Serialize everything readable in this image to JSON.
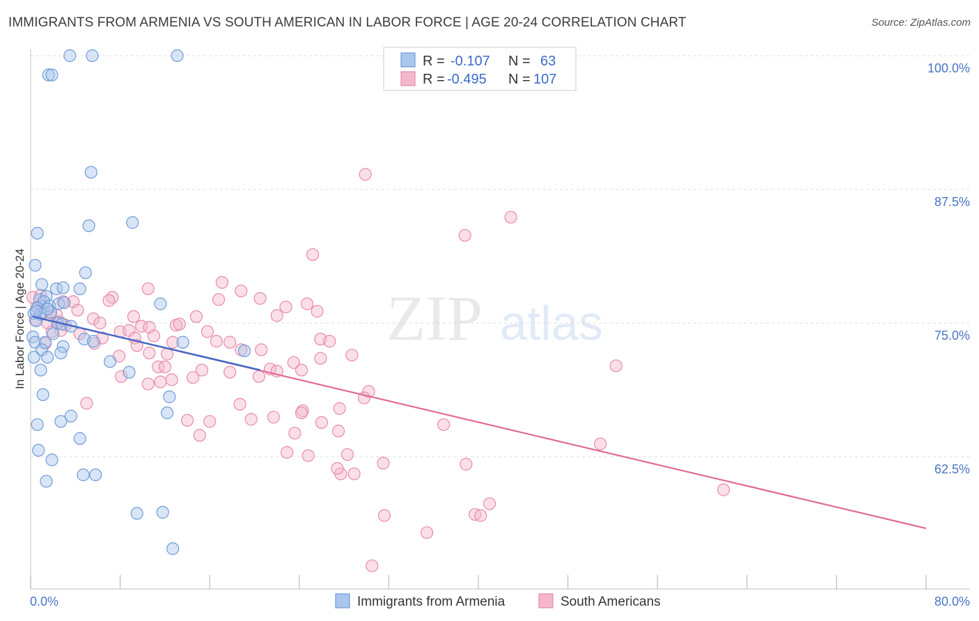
{
  "title": "IMMIGRANTS FROM ARMENIA VS SOUTH AMERICAN IN LABOR FORCE | AGE 20-24 CORRELATION CHART",
  "source": "Source: ZipAtlas.com",
  "watermark": {
    "zip": "ZIP",
    "atlas": "atlas"
  },
  "colors": {
    "blue_fill": "#a9c6ec",
    "blue_stroke": "#6e9bd8",
    "blue_line": "#3d68c8",
    "pink_fill": "#f5b8cb",
    "pink_stroke": "#e78aa8",
    "pink_line": "#e06a95",
    "grid": "#dddddd",
    "tick_text": "#4a74c4"
  },
  "legend": {
    "rows": [
      {
        "r_label": "R =",
        "r_value": "-0.107",
        "n_label": "N =",
        "n_value": "63"
      },
      {
        "r_label": "R =",
        "r_value": "-0.495",
        "n_label": "N =",
        "n_value": "107"
      }
    ]
  },
  "chart_data": {
    "type": "scatter",
    "xlabel": "",
    "ylabel": "In Labor Force | Age 20-24",
    "xlim": [
      0,
      80
    ],
    "ylim": [
      50,
      102
    ],
    "x_tick_labels": [
      "0.0%",
      "80.0%"
    ],
    "y_ticks": [
      100,
      87.5,
      75,
      62.5
    ],
    "y_tick_labels": [
      "100.0%",
      "87.5%",
      "75.0%",
      "62.5%"
    ],
    "grid": true,
    "legend_position": "top-center",
    "series": [
      {
        "name": "Immigrants from Armenia",
        "color": "#a9c6ec",
        "trend": {
          "x": [
            0.2,
            20.5
          ],
          "y": [
            75.6,
            70.6
          ]
        },
        "points": [
          [
            3.5,
            100
          ],
          [
            5.5,
            100
          ],
          [
            13.1,
            100
          ],
          [
            1.6,
            98.2
          ],
          [
            1.9,
            98.2
          ],
          [
            5.4,
            89.1
          ],
          [
            0.6,
            83.4
          ],
          [
            5.2,
            84.1
          ],
          [
            9.1,
            84.4
          ],
          [
            0.4,
            80.4
          ],
          [
            4.9,
            79.7
          ],
          [
            1.0,
            78.6
          ],
          [
            2.3,
            78.2
          ],
          [
            2.9,
            78.3
          ],
          [
            4.4,
            78.2
          ],
          [
            0.8,
            77.2
          ],
          [
            1.4,
            77.5
          ],
          [
            1.2,
            77.0
          ],
          [
            1.7,
            76.6
          ],
          [
            0.6,
            76.4
          ],
          [
            2.5,
            76.8
          ],
          [
            3.0,
            76.9
          ],
          [
            11.6,
            76.8
          ],
          [
            0.9,
            75.8
          ],
          [
            1.8,
            76.0
          ],
          [
            0.3,
            75.9
          ],
          [
            0.5,
            75.2
          ],
          [
            2.4,
            75.0
          ],
          [
            2.8,
            74.9
          ],
          [
            3.6,
            74.7
          ],
          [
            2.0,
            74.0
          ],
          [
            4.8,
            73.5
          ],
          [
            5.6,
            73.3
          ],
          [
            0.2,
            73.7
          ],
          [
            0.4,
            73.2
          ],
          [
            1.3,
            73.2
          ],
          [
            1.0,
            72.5
          ],
          [
            2.9,
            72.8
          ],
          [
            2.7,
            72.2
          ],
          [
            0.3,
            71.8
          ],
          [
            1.5,
            71.8
          ],
          [
            7.1,
            71.4
          ],
          [
            0.9,
            70.6
          ],
          [
            8.8,
            70.4
          ],
          [
            13.6,
            73.2
          ],
          [
            19.1,
            72.4
          ],
          [
            1.1,
            68.3
          ],
          [
            12.4,
            68.1
          ],
          [
            0.6,
            65.5
          ],
          [
            2.7,
            65.8
          ],
          [
            3.6,
            66.3
          ],
          [
            12.2,
            66.6
          ],
          [
            4.4,
            64.2
          ],
          [
            0.7,
            63.1
          ],
          [
            1.9,
            62.2
          ],
          [
            1.4,
            60.2
          ],
          [
            4.7,
            60.8
          ],
          [
            5.8,
            60.8
          ],
          [
            9.5,
            57.2
          ],
          [
            11.8,
            57.3
          ],
          [
            12.7,
            53.9
          ],
          [
            0.5,
            76.1
          ],
          [
            1.5,
            76.3
          ]
        ]
      },
      {
        "name": "South Americans",
        "color": "#f5b8cb",
        "trend": {
          "x": [
            0.2,
            80
          ],
          "y": [
            75.6,
            55.8
          ]
        },
        "points": [
          [
            29.9,
            88.9
          ],
          [
            42.9,
            84.9
          ],
          [
            38.8,
            83.2
          ],
          [
            25.2,
            81.4
          ],
          [
            17.1,
            78.8
          ],
          [
            18.8,
            78.0
          ],
          [
            10.5,
            78.2
          ],
          [
            0.2,
            77.4
          ],
          [
            0.9,
            77.6
          ],
          [
            7.3,
            77.4
          ],
          [
            7.0,
            77.1
          ],
          [
            16.8,
            77.2
          ],
          [
            20.5,
            77.3
          ],
          [
            2.9,
            77.0
          ],
          [
            3.8,
            77.0
          ],
          [
            22.8,
            76.5
          ],
          [
            24.7,
            76.8
          ],
          [
            25.6,
            76.1
          ],
          [
            0.6,
            76.5
          ],
          [
            1.1,
            76.1
          ],
          [
            1.8,
            75.7
          ],
          [
            2.3,
            75.8
          ],
          [
            4.2,
            76.2
          ],
          [
            9.2,
            75.6
          ],
          [
            14.8,
            75.6
          ],
          [
            22.0,
            75.7
          ],
          [
            0.4,
            75.3
          ],
          [
            1.5,
            75.0
          ],
          [
            2.6,
            75.1
          ],
          [
            3.1,
            74.8
          ],
          [
            5.6,
            75.4
          ],
          [
            6.2,
            75.0
          ],
          [
            8.0,
            74.2
          ],
          [
            8.8,
            74.3
          ],
          [
            9.9,
            74.7
          ],
          [
            10.6,
            74.6
          ],
          [
            13.0,
            74.8
          ],
          [
            13.3,
            74.9
          ],
          [
            15.8,
            74.2
          ],
          [
            1.9,
            74.2
          ],
          [
            2.7,
            74.3
          ],
          [
            4.4,
            74.0
          ],
          [
            6.4,
            73.6
          ],
          [
            9.3,
            73.6
          ],
          [
            11.0,
            73.8
          ],
          [
            12.7,
            73.2
          ],
          [
            16.6,
            73.3
          ],
          [
            17.8,
            73.2
          ],
          [
            25.9,
            73.5
          ],
          [
            26.7,
            73.3
          ],
          [
            1.3,
            73.1
          ],
          [
            5.7,
            73.1
          ],
          [
            9.5,
            72.9
          ],
          [
            10.6,
            72.2
          ],
          [
            12.2,
            72.1
          ],
          [
            18.8,
            72.5
          ],
          [
            20.6,
            72.5
          ],
          [
            25.9,
            71.7
          ],
          [
            28.7,
            72.0
          ],
          [
            7.9,
            71.9
          ],
          [
            23.5,
            71.3
          ],
          [
            11.4,
            70.9
          ],
          [
            12.0,
            70.9
          ],
          [
            21.4,
            70.7
          ],
          [
            22.0,
            70.5
          ],
          [
            15.3,
            70.6
          ],
          [
            24.2,
            70.6
          ],
          [
            17.8,
            70.4
          ],
          [
            8.1,
            70.0
          ],
          [
            11.6,
            69.5
          ],
          [
            12.6,
            69.7
          ],
          [
            10.5,
            69.3
          ],
          [
            14.5,
            69.9
          ],
          [
            20.4,
            70.0
          ],
          [
            30.2,
            68.6
          ],
          [
            29.8,
            68.0
          ],
          [
            52.3,
            71.0
          ],
          [
            5.0,
            67.5
          ],
          [
            18.7,
            67.4
          ],
          [
            24.3,
            66.8
          ],
          [
            27.6,
            67.0
          ],
          [
            19.7,
            66.0
          ],
          [
            21.7,
            66.2
          ],
          [
            16.0,
            65.8
          ],
          [
            14.0,
            65.9
          ],
          [
            24.2,
            66.6
          ],
          [
            26.0,
            65.7
          ],
          [
            36.9,
            65.5
          ],
          [
            23.6,
            64.7
          ],
          [
            27.5,
            64.9
          ],
          [
            15.1,
            64.5
          ],
          [
            50.9,
            63.7
          ],
          [
            24.8,
            62.6
          ],
          [
            28.3,
            62.7
          ],
          [
            31.5,
            61.9
          ],
          [
            38.9,
            61.8
          ],
          [
            27.7,
            60.9
          ],
          [
            28.9,
            60.9
          ],
          [
            61.9,
            59.4
          ],
          [
            41.0,
            58.1
          ],
          [
            39.7,
            57.1
          ],
          [
            40.2,
            57.0
          ],
          [
            31.6,
            57.0
          ],
          [
            35.4,
            55.4
          ],
          [
            30.5,
            52.3
          ],
          [
            27.4,
            61.4
          ],
          [
            22.9,
            62.9
          ]
        ]
      }
    ]
  }
}
